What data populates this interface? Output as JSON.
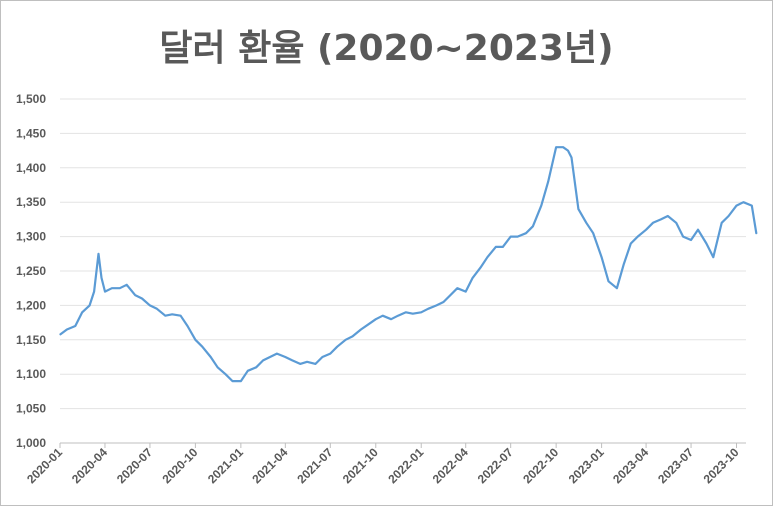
{
  "chart_data": {
    "type": "line",
    "title": "달러 환율 (2020~2023년)",
    "xlabel": "",
    "ylabel": "",
    "ylim": [
      1000,
      1500
    ],
    "yticks": [
      1000,
      1050,
      1100,
      1150,
      1200,
      1250,
      1300,
      1350,
      1400,
      1450,
      1500
    ],
    "ytick_labels": [
      "1,000",
      "1,050",
      "1,100",
      "1,150",
      "1,200",
      "1,250",
      "1,300",
      "1,350",
      "1,400",
      "1,450",
      "1,500"
    ],
    "xticks": [
      "2020-01",
      "2020-04",
      "2020-07",
      "2020-10",
      "2021-01",
      "2021-04",
      "2021-07",
      "2021-10",
      "2022-01",
      "2022-04",
      "2022-07",
      "2022-10",
      "2023-01",
      "2023-04",
      "2023-07",
      "2023-10"
    ],
    "grid": true,
    "line_color": "#5b9bd5",
    "series": [
      {
        "x": [
          "2020-01-02",
          "2020-01-15",
          "2020-02-01",
          "2020-02-15",
          "2020-03-01",
          "2020-03-10",
          "2020-03-19",
          "2020-03-25",
          "2020-04-01",
          "2020-04-15",
          "2020-05-01",
          "2020-05-15",
          "2020-06-01",
          "2020-06-15",
          "2020-07-01",
          "2020-07-15",
          "2020-08-01",
          "2020-08-15",
          "2020-09-01",
          "2020-09-15",
          "2020-10-01",
          "2020-10-15",
          "2020-11-01",
          "2020-11-15",
          "2020-12-01",
          "2020-12-15",
          "2021-01-01",
          "2021-01-15",
          "2021-02-01",
          "2021-02-15",
          "2021-03-01",
          "2021-03-15",
          "2021-04-01",
          "2021-04-15",
          "2021-05-01",
          "2021-05-15",
          "2021-06-01",
          "2021-06-15",
          "2021-07-01",
          "2021-07-15",
          "2021-08-01",
          "2021-08-15",
          "2021-09-01",
          "2021-09-15",
          "2021-10-01",
          "2021-10-15",
          "2021-11-01",
          "2021-11-15",
          "2021-12-01",
          "2021-12-15",
          "2022-01-01",
          "2022-01-15",
          "2022-02-01",
          "2022-02-15",
          "2022-03-01",
          "2022-03-15",
          "2022-04-01",
          "2022-04-15",
          "2022-05-01",
          "2022-05-15",
          "2022-06-01",
          "2022-06-15",
          "2022-07-01",
          "2022-07-15",
          "2022-08-01",
          "2022-08-15",
          "2022-09-01",
          "2022-09-15",
          "2022-10-01",
          "2022-10-15",
          "2022-10-25",
          "2022-11-01",
          "2022-11-15",
          "2022-12-01",
          "2022-12-15",
          "2023-01-01",
          "2023-01-15",
          "2023-02-01",
          "2023-02-15",
          "2023-03-01",
          "2023-03-15",
          "2023-04-01",
          "2023-04-15",
          "2023-05-01",
          "2023-05-15",
          "2023-06-01",
          "2023-06-15",
          "2023-07-01",
          "2023-07-15",
          "2023-08-01",
          "2023-08-15",
          "2023-09-01",
          "2023-09-15",
          "2023-10-01",
          "2023-10-15",
          "2023-11-01",
          "2023-11-10"
        ],
        "values": [
          1158,
          1165,
          1170,
          1190,
          1200,
          1220,
          1275,
          1240,
          1220,
          1225,
          1225,
          1230,
          1215,
          1210,
          1200,
          1195,
          1185,
          1187,
          1185,
          1170,
          1150,
          1140,
          1125,
          1110,
          1100,
          1090,
          1090,
          1105,
          1110,
          1120,
          1125,
          1130,
          1125,
          1120,
          1115,
          1118,
          1115,
          1125,
          1130,
          1140,
          1150,
          1155,
          1165,
          1172,
          1180,
          1185,
          1180,
          1185,
          1190,
          1188,
          1190,
          1195,
          1200,
          1205,
          1215,
          1225,
          1220,
          1240,
          1255,
          1270,
          1285,
          1285,
          1300,
          1300,
          1305,
          1315,
          1345,
          1380,
          1430,
          1430,
          1425,
          1415,
          1340,
          1320,
          1305,
          1270,
          1235,
          1225,
          1260,
          1290,
          1300,
          1310,
          1320,
          1325,
          1330,
          1320,
          1300,
          1295,
          1310,
          1290,
          1270,
          1320,
          1330,
          1345,
          1350,
          1345,
          1305
        ]
      }
    ]
  }
}
